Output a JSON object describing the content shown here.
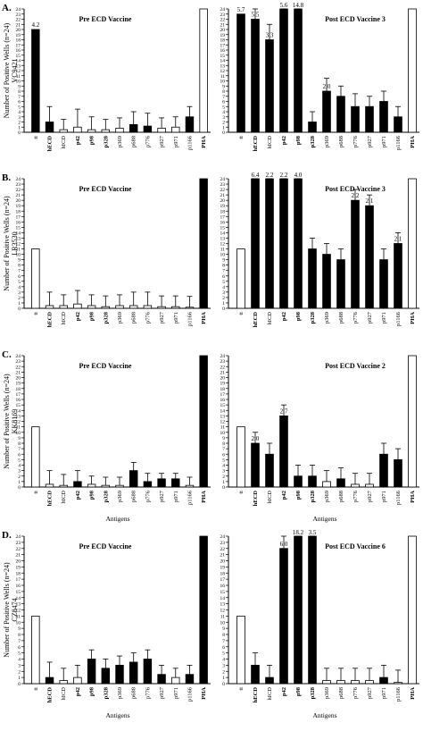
{
  "chart_data": [
    {
      "type": "bar",
      "panel_label": "A.",
      "ylabel": "Number of Positive Wells (n=24)",
      "patient_id": "VC9421",
      "ylim": [
        0,
        24
      ],
      "yticks": [
        0,
        1,
        2,
        3,
        4,
        5,
        6,
        7,
        8,
        9,
        10,
        11,
        12,
        13,
        14,
        15,
        16,
        17,
        18,
        19,
        20,
        21,
        22,
        23,
        24
      ],
      "subplots": [
        {
          "title": "Pre ECD Vaccine",
          "xlabel": "",
          "categories": [
            "tt",
            "hECD",
            "hICD",
            "p42",
            "p98",
            "p328",
            "p369",
            "p688",
            "p776",
            "p927",
            "p971",
            "p1166",
            "PHA"
          ],
          "values": [
            20,
            2,
            0.5,
            1,
            0.5,
            0.5,
            0.8,
            1.5,
            1.2,
            0.8,
            1,
            3,
            24
          ],
          "error": [
            0,
            3,
            2,
            3.5,
            2.5,
            2,
            2,
            2.5,
            2.5,
            2,
            2,
            2,
            0
          ],
          "fills": [
            "black",
            "black",
            "white",
            "white",
            "white",
            "white",
            "white",
            "black",
            "black",
            "white",
            "white",
            "black",
            "white"
          ],
          "annotations": [
            {
              "category": "tt",
              "text": "4.2"
            }
          ]
        },
        {
          "title": "Post ECD Vaccine 3",
          "xlabel": "",
          "categories": [
            "tt",
            "hECD",
            "hICD",
            "p42",
            "p98",
            "p328",
            "p369",
            "p688",
            "p776",
            "p927",
            "p971",
            "p1166",
            "PHA"
          ],
          "values": [
            23,
            22,
            18,
            24,
            24,
            2,
            8,
            7,
            5,
            5,
            6,
            3,
            24
          ],
          "error": [
            0,
            3,
            3,
            4,
            2.5,
            2,
            2.5,
            2,
            2.5,
            2,
            2,
            2,
            0
          ],
          "fills": [
            "black",
            "black",
            "black",
            "black",
            "black",
            "black",
            "black",
            "black",
            "black",
            "black",
            "black",
            "black",
            "white"
          ],
          "annotations": [
            {
              "category": "tt",
              "text": "5.7"
            },
            {
              "category": "hECD",
              "text": "5.5"
            },
            {
              "category": "hICD",
              "text": "3.3"
            },
            {
              "category": "p42",
              "text": "5.6"
            },
            {
              "category": "p98",
              "text": "14.8"
            },
            {
              "category": "p369",
              "text": "2.0"
            }
          ]
        }
      ]
    },
    {
      "type": "bar",
      "panel_label": "B.",
      "ylabel": "Number of Positive Wells (n=24)",
      "patient_id": "LR3530",
      "ylim": [
        0,
        24
      ],
      "yticks": [
        0,
        1,
        2,
        3,
        4,
        5,
        6,
        7,
        8,
        9,
        10,
        11,
        12,
        13,
        14,
        15,
        16,
        17,
        18,
        19,
        20,
        21,
        22,
        23,
        24
      ],
      "subplots": [
        {
          "title": "Pre ECD Vaccine",
          "xlabel": "",
          "categories": [
            "tt",
            "hECD",
            "hICD",
            "p42",
            "p98",
            "p328",
            "p369",
            "p688",
            "p776",
            "p927",
            "p971",
            "p1166",
            "PHA"
          ],
          "values": [
            11,
            0.5,
            0.5,
            0.8,
            0.5,
            0.3,
            0.5,
            0.5,
            0.5,
            0.3,
            0.3,
            0.2,
            24
          ],
          "error": [
            0,
            2.5,
            2,
            2.5,
            2,
            2,
            2,
            2.5,
            2.5,
            2,
            2,
            2,
            0
          ],
          "fills": [
            "white",
            "white",
            "white",
            "white",
            "white",
            "white",
            "white",
            "white",
            "white",
            "white",
            "white",
            "white",
            "black"
          ],
          "annotations": []
        },
        {
          "title": "Post ECD Vaccine 3",
          "xlabel": "",
          "categories": [
            "tt",
            "hECD",
            "hICD",
            "p42",
            "p98",
            "p328",
            "p369",
            "p688",
            "p776",
            "p927",
            "p971",
            "p1166",
            "PHA"
          ],
          "values": [
            11,
            24,
            24,
            24,
            24,
            11,
            10,
            9,
            20,
            19,
            9,
            12,
            24
          ],
          "error": [
            0,
            2,
            2,
            2.5,
            2,
            2,
            2,
            2,
            2,
            2,
            2,
            2,
            0
          ],
          "fills": [
            "white",
            "black",
            "black",
            "black",
            "black",
            "black",
            "black",
            "black",
            "black",
            "black",
            "black",
            "black",
            "white"
          ],
          "annotations": [
            {
              "category": "hECD",
              "text": "6.4"
            },
            {
              "category": "hICD",
              "text": "2.2"
            },
            {
              "category": "p42",
              "text": "2.2"
            },
            {
              "category": "p98",
              "text": "4.0"
            },
            {
              "category": "p776",
              "text": "2.2"
            },
            {
              "category": "p927",
              "text": "2.1"
            },
            {
              "category": "p1166",
              "text": "2.1"
            }
          ]
        }
      ]
    },
    {
      "type": "bar",
      "panel_label": "C.",
      "ylabel": "Number of Positive Wells (n=24)",
      "patient_id": "KK8169",
      "ylim": [
        0,
        24
      ],
      "yticks": [
        0,
        1,
        2,
        3,
        4,
        5,
        6,
        7,
        8,
        9,
        10,
        11,
        12,
        13,
        14,
        15,
        16,
        17,
        18,
        19,
        20,
        21,
        22,
        23,
        24
      ],
      "subplots": [
        {
          "title": "Pre ECD Vaccine",
          "xlabel": "Antigens",
          "categories": [
            "tt",
            "hECD",
            "hICD",
            "p42",
            "p98",
            "p328",
            "p369",
            "p688",
            "p776",
            "p927",
            "p971",
            "p1166",
            "PHA"
          ],
          "values": [
            11,
            0.5,
            0.3,
            1,
            0.5,
            0.3,
            0.3,
            3,
            1,
            1.5,
            1.5,
            0.3,
            24
          ],
          "error": [
            0,
            2.5,
            2,
            2,
            1.5,
            1.5,
            1.5,
            1.5,
            1.5,
            1,
            1,
            1.5,
            0
          ],
          "fills": [
            "white",
            "white",
            "white",
            "black",
            "white",
            "white",
            "white",
            "black",
            "black",
            "black",
            "black",
            "white",
            "black"
          ],
          "annotations": []
        },
        {
          "title": "Post ECD Vaccine 2",
          "xlabel": "Antigens",
          "categories": [
            "tt",
            "hECD",
            "hICD",
            "p42",
            "p98",
            "p328",
            "p369",
            "p688",
            "p776",
            "p927",
            "p971",
            "p1166",
            "PHA"
          ],
          "values": [
            11,
            8,
            6,
            13,
            2,
            2,
            1,
            1.5,
            0.5,
            0.5,
            6,
            5,
            24
          ],
          "error": [
            0,
            2,
            2,
            2,
            2,
            2,
            2,
            2,
            2,
            2,
            2,
            2,
            0
          ],
          "fills": [
            "white",
            "black",
            "black",
            "black",
            "black",
            "black",
            "white",
            "black",
            "white",
            "white",
            "black",
            "black",
            "white"
          ],
          "annotations": [
            {
              "category": "hECD",
              "text": "2.0"
            },
            {
              "category": "p42",
              "text": "2.7"
            }
          ]
        }
      ]
    },
    {
      "type": "bar",
      "panel_label": "D.",
      "ylabel": "Number of Positive Wells (n=24)",
      "patient_id": "CZ8474",
      "ylim": [
        0,
        24
      ],
      "yticks": [
        0,
        1,
        2,
        3,
        4,
        5,
        6,
        7,
        8,
        9,
        10,
        11,
        12,
        13,
        14,
        15,
        16,
        17,
        18,
        19,
        20,
        21,
        22,
        23,
        24
      ],
      "subplots": [
        {
          "title": "Pre ECD Vaccine",
          "xlabel": "Antigens",
          "categories": [
            "tt",
            "hECD",
            "hICD",
            "p42",
            "p98",
            "p328",
            "p369",
            "p688",
            "p776",
            "p927",
            "p971",
            "p1166",
            "PHA"
          ],
          "values": [
            11,
            1,
            0.5,
            1,
            4,
            2.5,
            3,
            3.5,
            4,
            1.5,
            1,
            1.5,
            24
          ],
          "error": [
            0,
            2.5,
            2,
            2,
            1.5,
            1.5,
            1.5,
            1.5,
            1.5,
            1.5,
            1.5,
            1.5,
            0
          ],
          "fills": [
            "white",
            "black",
            "white",
            "white",
            "black",
            "black",
            "black",
            "black",
            "black",
            "black",
            "white",
            "black",
            "black"
          ],
          "annotations": []
        },
        {
          "title": "Post ECD Vaccine 6",
          "xlabel": "Antigens",
          "categories": [
            "tt",
            "hECD",
            "hICD",
            "p42",
            "p98",
            "p328",
            "p369",
            "p688",
            "p776",
            "p927",
            "p971",
            "p1166",
            "PHA"
          ],
          "values": [
            11,
            3,
            1,
            22,
            24,
            24,
            0.5,
            0.5,
            0.5,
            0.5,
            1,
            0.2,
            24
          ],
          "error": [
            0,
            2,
            2,
            2,
            2,
            2,
            2,
            2,
            2,
            2,
            2,
            2,
            0
          ],
          "fills": [
            "white",
            "black",
            "black",
            "black",
            "black",
            "black",
            "white",
            "white",
            "white",
            "white",
            "black",
            "white",
            "white"
          ],
          "annotations": [
            {
              "category": "p42",
              "text": "6.0"
            },
            {
              "category": "p98",
              "text": "18.2"
            },
            {
              "category": "p328",
              "text": "3.5"
            }
          ]
        }
      ]
    }
  ]
}
